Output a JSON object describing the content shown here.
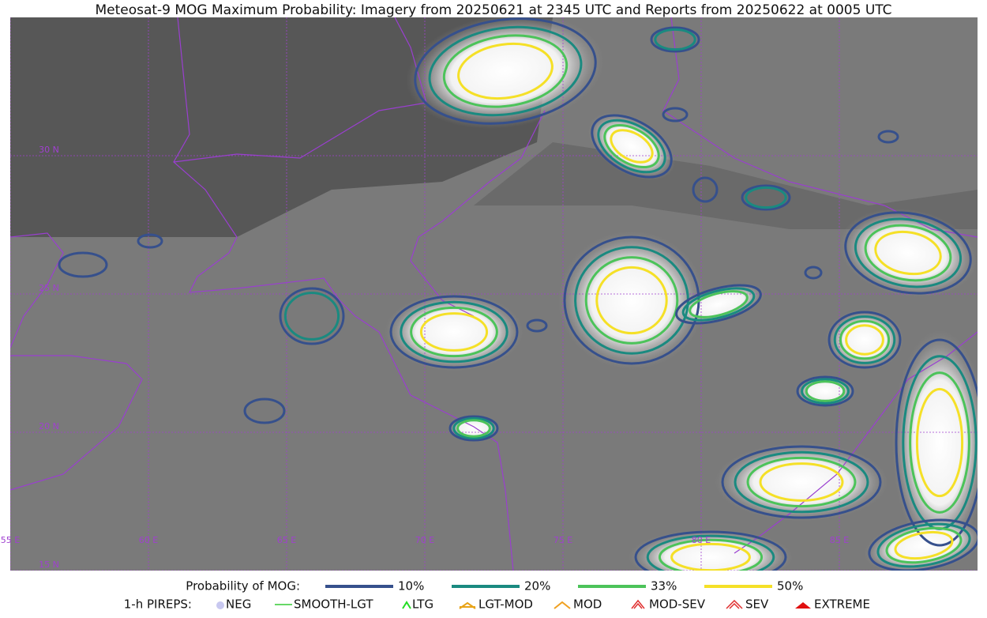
{
  "title": "Meteosat-9 MOG Maximum Probability: Imagery from 20250621 at 2345 UTC and Reports from 20250622 at 0005 UTC",
  "latitudes": [
    {
      "value": 30,
      "label": "30 N"
    },
    {
      "value": 25,
      "label": "25 N"
    },
    {
      "value": 20,
      "label": "20 N"
    },
    {
      "value": 15,
      "label": "15 N"
    }
  ],
  "longitudes": [
    {
      "value": 55,
      "label": "55 E"
    },
    {
      "value": 60,
      "label": "60 E"
    },
    {
      "value": 65,
      "label": "65 E"
    },
    {
      "value": 70,
      "label": "70 E"
    },
    {
      "value": 75,
      "label": "75 E"
    },
    {
      "value": 80,
      "label": "80 E"
    },
    {
      "value": 85,
      "label": "85 E"
    }
  ],
  "probability_legend": {
    "title": "Probability of MOG:",
    "levels": [
      {
        "label": "10%",
        "color": "#36508c"
      },
      {
        "label": "20%",
        "color": "#1a8a80"
      },
      {
        "label": "33%",
        "color": "#4cc35a"
      },
      {
        "label": "50%",
        "color": "#f5e027"
      }
    ]
  },
  "pirep_legend": {
    "title": "1-h PIREPS:",
    "items": [
      "NEG",
      "SMOOTH-LGT",
      "LTG",
      "LGT-MOD",
      "MOD",
      "MOD-SEV",
      "SEV",
      "EXTREME"
    ]
  }
}
